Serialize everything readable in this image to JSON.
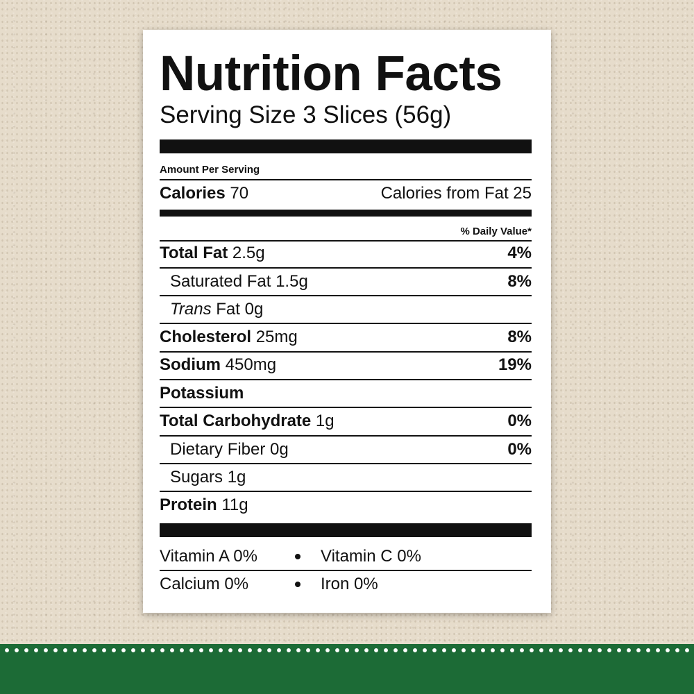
{
  "title": "Nutrition Facts",
  "serving_size": "Serving Size 3 Slices (56g)",
  "amount_per_serving": "Amount Per Serving",
  "calories": {
    "label": "Calories",
    "value": "70",
    "from_fat": "Calories from Fat 25"
  },
  "daily_value_header": "% Daily Value*",
  "nutrients": {
    "total_fat": {
      "label": "Total Fat",
      "amount": "2.5g",
      "dv": "4%"
    },
    "saturated_fat": {
      "label": "Saturated Fat 1.5g",
      "dv": "8%"
    },
    "trans_fat": {
      "label_italic": "Trans",
      "label_rest": " Fat 0g"
    },
    "cholesterol": {
      "label": "Cholesterol",
      "amount": "25mg",
      "dv": "8%"
    },
    "sodium": {
      "label": "Sodium",
      "amount": "450mg",
      "dv": "19%"
    },
    "potassium": {
      "label": "Potassium"
    },
    "total_carb": {
      "label": "Total Carbohydrate",
      "amount": "1g",
      "dv": "0%"
    },
    "dietary_fiber": {
      "label": "Dietary Fiber 0g",
      "dv": "0%"
    },
    "sugars": {
      "label": "Sugars 1g"
    },
    "protein": {
      "label": "Protein",
      "amount": "11g"
    }
  },
  "vitamins": {
    "vitamin_a": "Vitamin A 0%",
    "vitamin_c": "Vitamin C 0%",
    "calcium": "Calcium 0%",
    "iron": "Iron 0%"
  },
  "colors": {
    "background": "#e6dccb",
    "band": "#1c6b36",
    "ink": "#111111"
  }
}
